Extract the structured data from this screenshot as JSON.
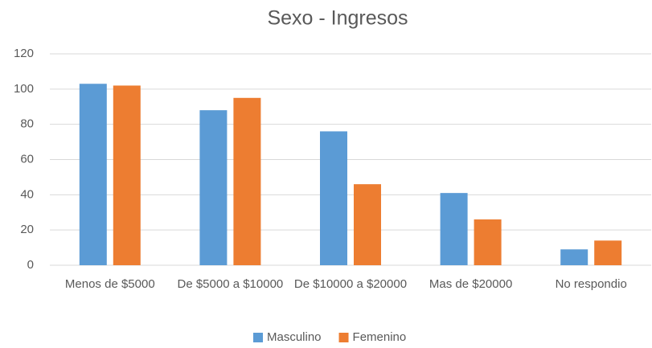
{
  "chart_data": {
    "type": "bar",
    "title": "Sexo - Ingresos",
    "categories": [
      "Menos de $5000",
      "De $5000 a $10000",
      "De $10000 a $20000",
      "Mas de $20000",
      "No respondio"
    ],
    "series": [
      {
        "name": "Masculino",
        "color": "#5b9bd5",
        "values": [
          103,
          88,
          76,
          41,
          9
        ]
      },
      {
        "name": "Femenino",
        "color": "#ed7d31",
        "values": [
          102,
          95,
          46,
          26,
          14
        ]
      }
    ],
    "ylim": [
      0,
      120
    ],
    "yticks": [
      0,
      20,
      40,
      60,
      80,
      100,
      120
    ],
    "grid": true,
    "legend": "bottom"
  }
}
